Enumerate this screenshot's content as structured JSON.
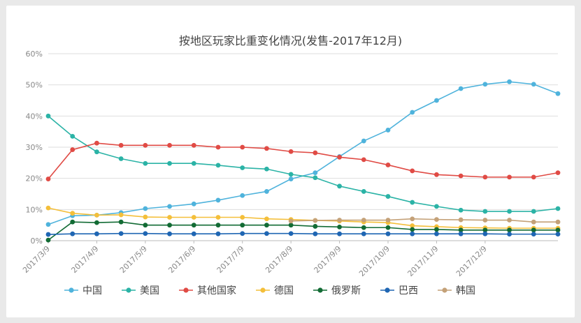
{
  "chart_data": {
    "type": "line",
    "title": "按地区玩家比重变化情况(发售-2017年12月)",
    "xlabel": "",
    "ylabel": "",
    "ylim": [
      0,
      60
    ],
    "y_ticks": [
      "0%",
      "10%",
      "20%",
      "30%",
      "40%",
      "50%",
      "60%"
    ],
    "x_tick_labels": [
      "2017/3/9",
      "2017/4/9",
      "2017/5/9",
      "2017/6/9",
      "2017/7/9",
      "2017/8/9",
      "2017/9/9",
      "2017/10/9",
      "2017/11/9",
      "2017/12/9"
    ],
    "grid": true,
    "legend_position": "bottom",
    "series": [
      {
        "name": "中国",
        "color": "#4fb3dc",
        "values": [
          5.2,
          8.0,
          8.2,
          9.0,
          10.3,
          11.0,
          11.8,
          13.0,
          14.5,
          15.8,
          19.8,
          21.8,
          27.0,
          32.0,
          35.5,
          41.2,
          45.0,
          48.8,
          50.2,
          51.0,
          50.2,
          47.2
        ]
      },
      {
        "name": "美国",
        "color": "#2bb3a6",
        "values": [
          40.0,
          33.5,
          28.5,
          26.3,
          24.8,
          24.8,
          24.8,
          24.2,
          23.4,
          23.0,
          21.3,
          20.2,
          17.5,
          15.8,
          14.2,
          12.3,
          11.0,
          9.8,
          9.4,
          9.4,
          9.4,
          10.3
        ]
      },
      {
        "name": "其他国家",
        "color": "#e04b45",
        "values": [
          19.8,
          29.2,
          31.3,
          30.6,
          30.6,
          30.6,
          30.6,
          30.0,
          30.0,
          29.6,
          28.6,
          28.2,
          26.8,
          26.0,
          24.3,
          22.4,
          21.2,
          20.8,
          20.4,
          20.4,
          20.4,
          21.8
        ]
      },
      {
        "name": "德国",
        "color": "#f4bf3a",
        "values": [
          10.5,
          8.8,
          8.2,
          8.3,
          7.6,
          7.5,
          7.5,
          7.5,
          7.5,
          7.0,
          6.8,
          6.5,
          6.3,
          6.0,
          5.8,
          4.8,
          4.5,
          4.2,
          4.1,
          4.0,
          4.0,
          4.0
        ]
      },
      {
        "name": "俄罗斯",
        "color": "#126b34",
        "values": [
          0.2,
          6.0,
          5.8,
          6.0,
          5.0,
          5.0,
          5.0,
          5.0,
          5.0,
          5.0,
          5.0,
          4.6,
          4.4,
          4.2,
          4.2,
          3.6,
          3.6,
          3.4,
          3.4,
          3.4,
          3.4,
          3.4
        ]
      },
      {
        "name": "巴西",
        "color": "#1f66b3",
        "values": [
          2.0,
          2.2,
          2.2,
          2.3,
          2.3,
          2.2,
          2.2,
          2.2,
          2.3,
          2.3,
          2.3,
          2.2,
          2.2,
          2.2,
          2.2,
          2.2,
          2.2,
          2.2,
          2.2,
          2.1,
          2.1,
          2.1
        ]
      },
      {
        "name": "韩国",
        "color": "#c4a178",
        "values": [
          null,
          null,
          null,
          null,
          null,
          null,
          null,
          null,
          null,
          null,
          6.3,
          6.5,
          6.6,
          6.6,
          6.6,
          7.0,
          6.8,
          6.7,
          6.6,
          6.6,
          6.0,
          6.0
        ]
      }
    ]
  }
}
